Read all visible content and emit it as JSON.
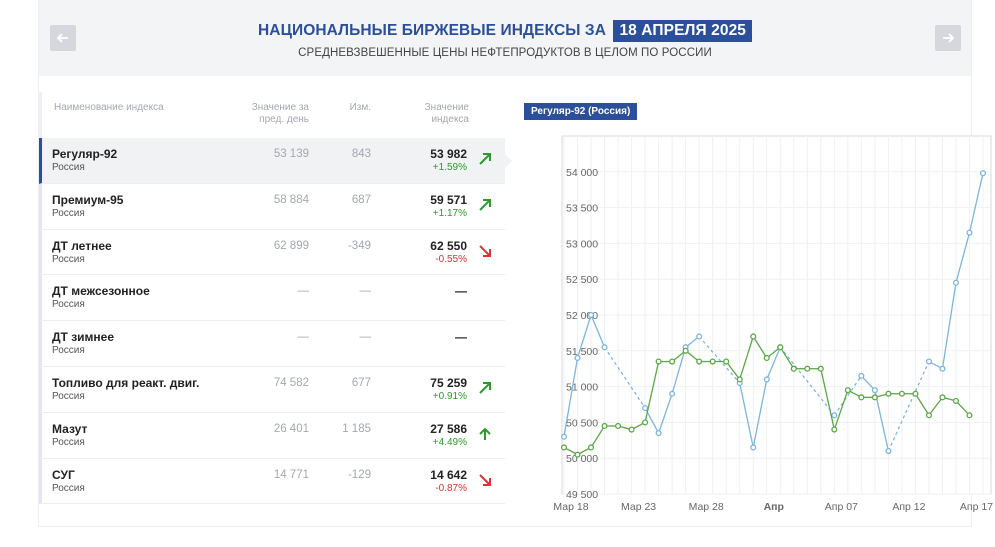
{
  "header": {
    "title": "НАЦИОНАЛЬНЫЕ БИРЖЕВЫЕ ИНДЕКСЫ ЗА",
    "date": "18 АПРЕЛЯ 2025",
    "subtitle": "СРЕДНЕВЗВЕШЕННЫЕ ЦЕНЫ НЕФТЕПРОДУКТОВ В ЦЕЛОМ ПО РОССИИ",
    "prev_icon": "arrow-left-icon",
    "next_icon": "arrow-right-icon"
  },
  "table": {
    "columns": [
      "Наименование индекса",
      "Значение за пред. день",
      "Изм.",
      "Значение индекса"
    ],
    "rows": [
      {
        "name": "Регуляр-92",
        "region": "Россия",
        "prev": "53 139",
        "change": "843",
        "value": "53 982",
        "pct": "+1.59%",
        "dir": "up",
        "arrow": "arrow-up-right-icon"
      },
      {
        "name": "Премиум-95",
        "region": "Россия",
        "prev": "58 884",
        "change": "687",
        "value": "59 571",
        "pct": "+1.17%",
        "dir": "up",
        "arrow": "arrow-up-right-icon"
      },
      {
        "name": "ДТ летнее",
        "region": "Россия",
        "prev": "62 899",
        "change": "-349",
        "value": "62 550",
        "pct": "-0.55%",
        "dir": "down",
        "arrow": "arrow-down-right-icon"
      },
      {
        "name": "ДТ межсезонное",
        "region": "Россия",
        "prev": "—",
        "change": "—",
        "value": "—",
        "pct": "",
        "dir": "none",
        "arrow": ""
      },
      {
        "name": "ДТ зимнее",
        "region": "Россия",
        "prev": "—",
        "change": "—",
        "value": "—",
        "pct": "",
        "dir": "none",
        "arrow": ""
      },
      {
        "name": "Топливо для реакт. двиг.",
        "region": "Россия",
        "prev": "74 582",
        "change": "677",
        "value": "75 259",
        "pct": "+0.91%",
        "dir": "up",
        "arrow": "arrow-up-right-icon"
      },
      {
        "name": "Мазут",
        "region": "Россия",
        "prev": "26 401",
        "change": "1 185",
        "value": "27 586",
        "pct": "+4.49%",
        "dir": "up-strong",
        "arrow": "arrow-up-icon"
      },
      {
        "name": "СУГ",
        "region": "Россия",
        "prev": "14 771",
        "change": "-129",
        "value": "14 642",
        "pct": "-0.87%",
        "dir": "down",
        "arrow": "arrow-down-right-icon"
      }
    ]
  },
  "chart_tag": "Регуляр-92 (Россия)",
  "chart_data": {
    "type": "line",
    "title": "",
    "xlabel": "",
    "ylabel": "",
    "ylim": [
      49500,
      54500
    ],
    "yticks": [
      49500,
      50000,
      50500,
      51000,
      51500,
      52000,
      52500,
      53000,
      53500,
      54000
    ],
    "ytick_labels": [
      "49 500",
      "50 000",
      "50 500",
      "51 000",
      "51 500",
      "52 000",
      "52 500",
      "53 000",
      "53 500",
      "54 000"
    ],
    "x_labels": [
      "Мар 18",
      "Мар 23",
      "Мар 28",
      "Апр",
      "Апр 07",
      "Апр 12",
      "Апр 17"
    ],
    "grid": true,
    "colors": {
      "blue": "#7bb5e0",
      "green": "#5aa845"
    },
    "series": [
      {
        "color": "#7bb5e0",
        "points": [
          [
            0,
            50300
          ],
          [
            1,
            51400
          ],
          [
            2,
            52000
          ],
          [
            3,
            51550
          ],
          [
            6,
            50700
          ],
          [
            7,
            50350
          ],
          [
            8,
            50900
          ],
          [
            9,
            51550
          ],
          [
            10,
            51700
          ],
          [
            13,
            51050
          ],
          [
            14,
            50150
          ],
          [
            15,
            51100
          ],
          [
            16,
            51550
          ],
          [
            20,
            50600
          ],
          [
            22,
            51150
          ],
          [
            23,
            50950
          ],
          [
            24,
            50100
          ],
          [
            27,
            51350
          ],
          [
            28,
            51250
          ],
          [
            29,
            52450
          ],
          [
            30,
            53150
          ],
          [
            31,
            53980
          ]
        ]
      },
      {
        "color": "#5aa845",
        "points": [
          [
            0,
            50150
          ],
          [
            1,
            50050
          ],
          [
            2,
            50150
          ],
          [
            3,
            50450
          ],
          [
            4,
            50450
          ],
          [
            5,
            50400
          ],
          [
            6,
            50500
          ],
          [
            7,
            51350
          ],
          [
            8,
            51350
          ],
          [
            9,
            51500
          ],
          [
            10,
            51350
          ],
          [
            11,
            51350
          ],
          [
            12,
            51350
          ],
          [
            13,
            51100
          ],
          [
            14,
            51700
          ],
          [
            15,
            51400
          ],
          [
            16,
            51550
          ],
          [
            17,
            51250
          ],
          [
            18,
            51250
          ],
          [
            19,
            51250
          ],
          [
            20,
            50400
          ],
          [
            21,
            50950
          ],
          [
            22,
            50850
          ],
          [
            23,
            50850
          ],
          [
            24,
            50900
          ],
          [
            25,
            50900
          ],
          [
            26,
            50900
          ],
          [
            27,
            50600
          ],
          [
            28,
            50850
          ],
          [
            29,
            50800
          ],
          [
            30,
            50600
          ]
        ]
      }
    ]
  }
}
